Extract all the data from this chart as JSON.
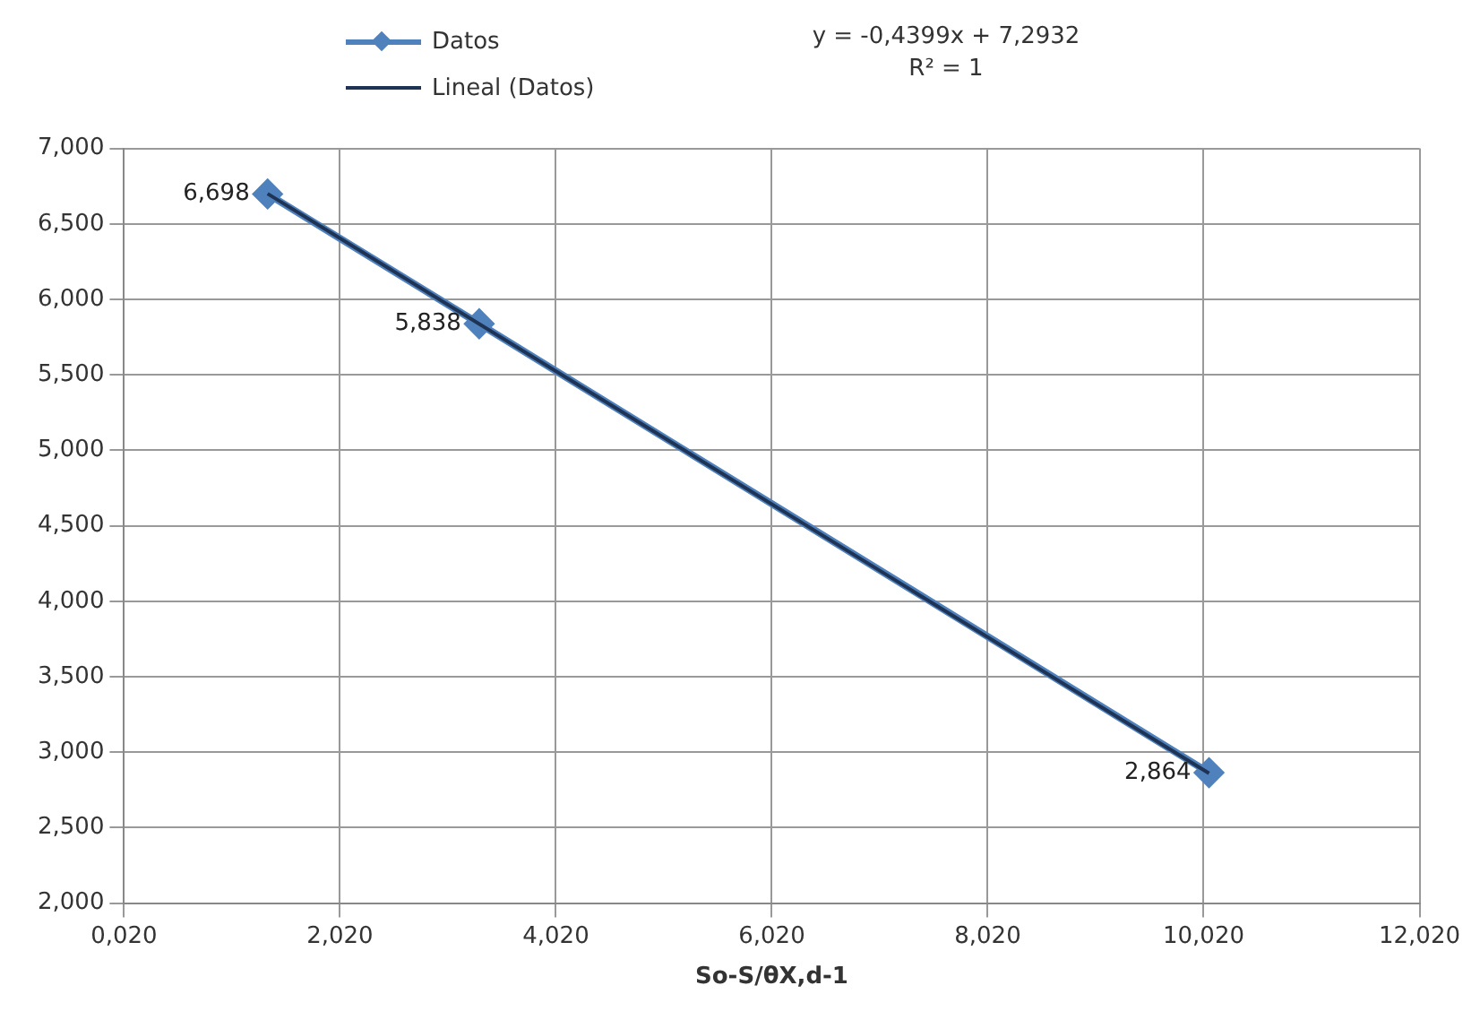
{
  "chart_data": {
    "type": "line",
    "xlabel": "So-S/θX,d-1",
    "annotations": [
      "y = -0,4399x + 7,2932",
      "R² = 1"
    ],
    "xlim": [
      0.02,
      12.02
    ],
    "xticks": [
      {
        "value": 0.02,
        "label": "0,020"
      },
      {
        "value": 2.02,
        "label": "2,020"
      },
      {
        "value": 4.02,
        "label": "4,020"
      },
      {
        "value": 6.02,
        "label": "6,020"
      },
      {
        "value": 8.02,
        "label": "8,020"
      },
      {
        "value": 10.02,
        "label": "10,020"
      },
      {
        "value": 12.02,
        "label": "12,020"
      }
    ],
    "ylim": [
      2,
      7
    ],
    "yticks": [
      {
        "value": 2,
        "label": "2,000"
      },
      {
        "value": 2.5,
        "label": "2,500"
      },
      {
        "value": 3,
        "label": "3,000"
      },
      {
        "value": 3.5,
        "label": "3,500"
      },
      {
        "value": 4,
        "label": "4,000"
      },
      {
        "value": 4.5,
        "label": "4,500"
      },
      {
        "value": 5,
        "label": "5,000"
      },
      {
        "value": 5.5,
        "label": "5,500"
      },
      {
        "value": 6,
        "label": "6,000"
      },
      {
        "value": 6.5,
        "label": "6,500"
      },
      {
        "value": 7,
        "label": "7,000"
      }
    ],
    "grid": true,
    "legend": "top",
    "series": [
      {
        "name": "Datos",
        "color": "#4f81bd",
        "marker": "diamond",
        "x": [
          1.35,
          3.31,
          10.07
        ],
        "values": [
          6.698,
          5.838,
          2.864
        ],
        "value_labels": [
          "6,698",
          "5,838",
          "2,864"
        ]
      },
      {
        "name": "Lineal (Datos)",
        "color": "#1f3454",
        "marker": "none",
        "x": [
          1.35,
          10.07
        ],
        "values": [
          6.7,
          2.86
        ]
      }
    ]
  }
}
